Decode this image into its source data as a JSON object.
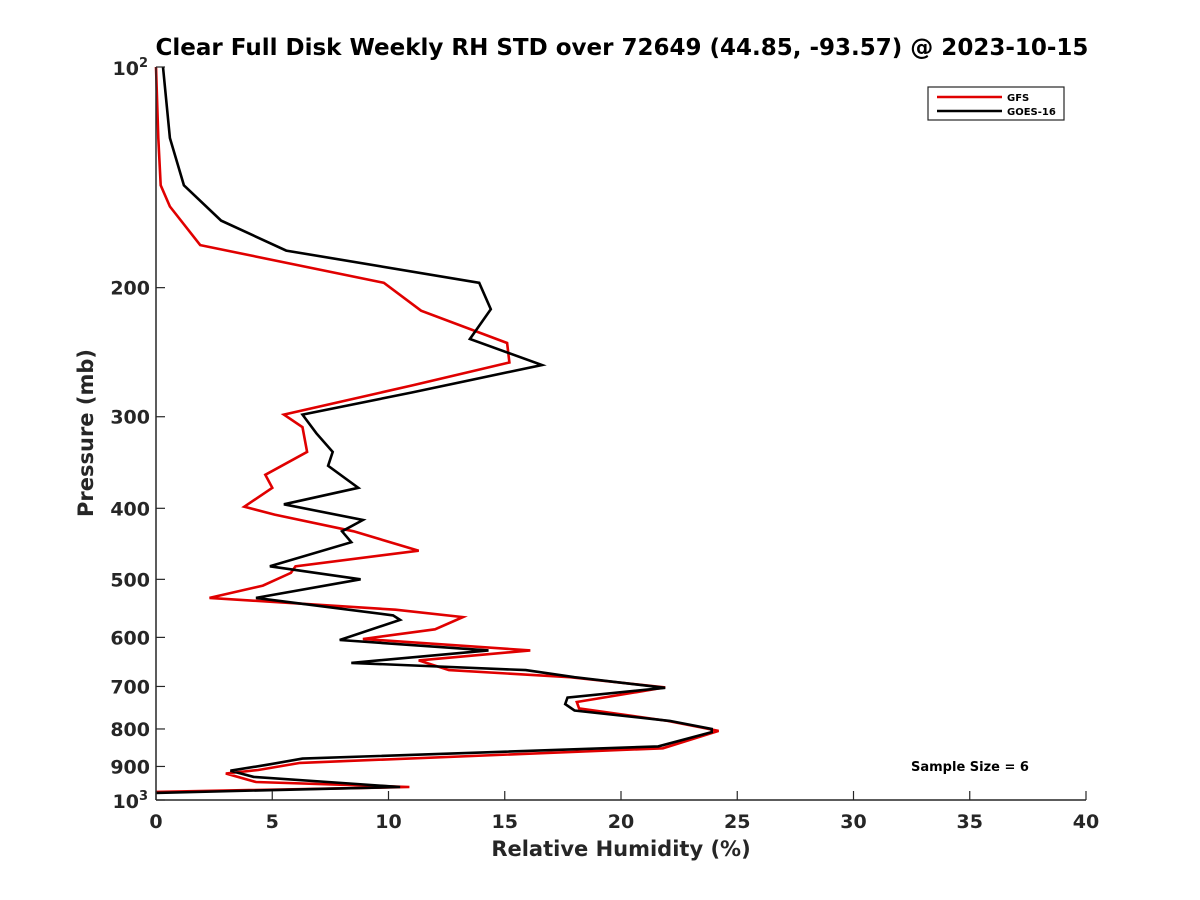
{
  "chart_data": {
    "type": "line",
    "title": "Clear Full Disk Weekly RH STD over 72649 (44.85, -93.57) @ 2023-10-15",
    "xlabel": "Relative Humidity (%)",
    "ylabel": "Pressure (mb)",
    "xlim": [
      0,
      40
    ],
    "ylim": [
      100,
      1000
    ],
    "yscale": "log",
    "y_reversed": true,
    "x_ticks": [
      "0",
      "5",
      "10",
      "15",
      "20",
      "25",
      "30",
      "35",
      "40"
    ],
    "y_ticks": [
      {
        "value": 100,
        "base": "10",
        "exp": "2"
      },
      {
        "value": 200,
        "label": "200"
      },
      {
        "value": 300,
        "label": "300"
      },
      {
        "value": 400,
        "label": "400"
      },
      {
        "value": 500,
        "label": "500"
      },
      {
        "value": 600,
        "label": "600"
      },
      {
        "value": 700,
        "label": "700"
      },
      {
        "value": 800,
        "label": "800"
      },
      {
        "value": 900,
        "label": "900"
      },
      {
        "value": 1000,
        "base": "10",
        "exp": "3"
      }
    ],
    "grid": false,
    "legend_position": "top-right",
    "annotation": "Sample Size = 6",
    "series": [
      {
        "name": "GFS",
        "color": "#e00000",
        "points": [
          [
            0.0,
            100
          ],
          [
            0.1,
            125
          ],
          [
            0.2,
            145
          ],
          [
            0.6,
            155
          ],
          [
            1.9,
            175
          ],
          [
            9.8,
            197
          ],
          [
            11.4,
            215
          ],
          [
            15.1,
            238
          ],
          [
            15.2,
            253
          ],
          [
            11.0,
            272
          ],
          [
            5.5,
            298
          ],
          [
            6.3,
            310
          ],
          [
            6.5,
            335
          ],
          [
            4.7,
            360
          ],
          [
            5.0,
            375
          ],
          [
            3.8,
            398
          ],
          [
            5.1,
            408
          ],
          [
            8.5,
            430
          ],
          [
            11.3,
            457
          ],
          [
            6.0,
            480
          ],
          [
            5.8,
            490
          ],
          [
            4.6,
            510
          ],
          [
            2.3,
            530
          ],
          [
            10.3,
            550
          ],
          [
            13.2,
            563
          ],
          [
            12.0,
            585
          ],
          [
            8.9,
            603
          ],
          [
            16.1,
            625
          ],
          [
            11.3,
            645
          ],
          [
            12.6,
            665
          ],
          [
            17.8,
            680
          ],
          [
            21.9,
            702
          ],
          [
            18.1,
            735
          ],
          [
            18.2,
            750
          ],
          [
            22.0,
            780
          ],
          [
            24.2,
            805
          ],
          [
            21.8,
            850
          ],
          [
            6.2,
            890
          ],
          [
            4.4,
            910
          ],
          [
            3.0,
            920
          ],
          [
            4.3,
            945
          ],
          [
            10.9,
            960
          ],
          [
            0.0,
            975
          ]
        ]
      },
      {
        "name": "GOES-16",
        "color": "#000000",
        "points": [
          [
            0.3,
            100
          ],
          [
            0.6,
            125
          ],
          [
            1.2,
            145
          ],
          [
            2.8,
            162
          ],
          [
            5.6,
            178
          ],
          [
            13.9,
            197
          ],
          [
            14.4,
            214
          ],
          [
            13.5,
            235
          ],
          [
            16.6,
            255
          ],
          [
            11.0,
            278
          ],
          [
            6.3,
            298
          ],
          [
            6.9,
            316
          ],
          [
            7.6,
            335
          ],
          [
            7.4,
            350
          ],
          [
            8.7,
            375
          ],
          [
            5.5,
            395
          ],
          [
            8.9,
            415
          ],
          [
            8.0,
            430
          ],
          [
            8.4,
            445
          ],
          [
            4.9,
            480
          ],
          [
            8.8,
            500
          ],
          [
            4.3,
            530
          ],
          [
            10.2,
            560
          ],
          [
            10.5,
            568
          ],
          [
            7.9,
            605
          ],
          [
            14.3,
            625
          ],
          [
            8.4,
            650
          ],
          [
            15.9,
            665
          ],
          [
            18.0,
            680
          ],
          [
            21.9,
            703
          ],
          [
            17.7,
            725
          ],
          [
            17.6,
            740
          ],
          [
            18.0,
            755
          ],
          [
            22.1,
            780
          ],
          [
            23.9,
            800
          ],
          [
            23.9,
            808
          ],
          [
            21.6,
            845
          ],
          [
            6.3,
            878
          ],
          [
            4.8,
            895
          ],
          [
            3.2,
            912
          ],
          [
            4.2,
            930
          ],
          [
            10.5,
            960
          ],
          [
            0.0,
            978
          ]
        ]
      }
    ]
  }
}
